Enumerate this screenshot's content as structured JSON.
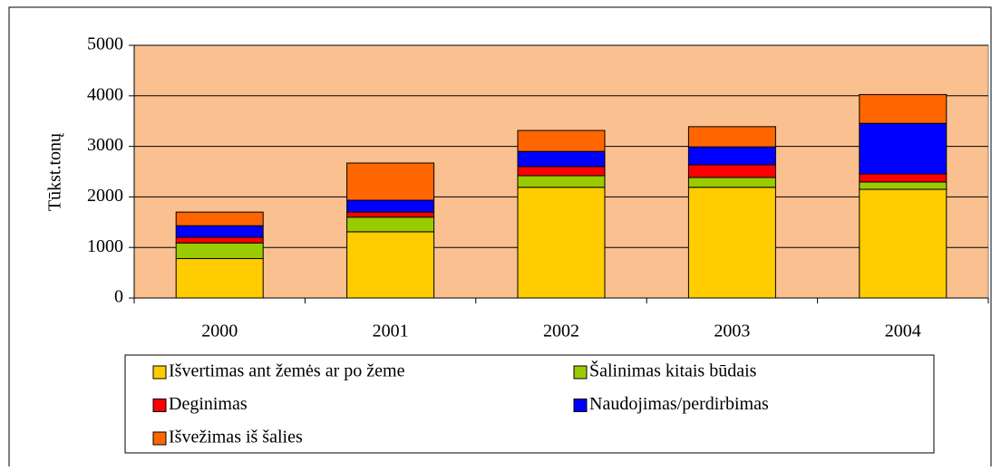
{
  "chart_data": {
    "type": "bar",
    "stacked": true,
    "y_label": "Tūkst.tonų",
    "categories": [
      "2000",
      "2001",
      "2002",
      "2003",
      "2004"
    ],
    "series": [
      {
        "name": "Išvertimas ant žemės ar po žeme",
        "color": "#ffcc00",
        "values": [
          780,
          1310,
          2190,
          2190,
          2150
        ]
      },
      {
        "name": "Šalinimas kitais būdais",
        "color": "#99cc00",
        "values": [
          310,
          290,
          230,
          195,
          145
        ]
      },
      {
        "name": "Deginimas",
        "color": "#ff0000",
        "values": [
          110,
          100,
          180,
          250,
          160
        ]
      },
      {
        "name": "Naudojimas/perdirbimas",
        "color": "#0000ff",
        "values": [
          230,
          235,
          300,
          355,
          1000
        ]
      },
      {
        "name": "Išvežimas iš šalies",
        "color": "#ff6600",
        "values": [
          270,
          735,
          415,
          400,
          570
        ]
      }
    ],
    "ylim": [
      0,
      5000
    ],
    "yticks": [
      0,
      1000,
      2000,
      3000,
      4000,
      5000
    ],
    "grid": true,
    "plot_background": "#fac090",
    "legend": "bottom"
  }
}
